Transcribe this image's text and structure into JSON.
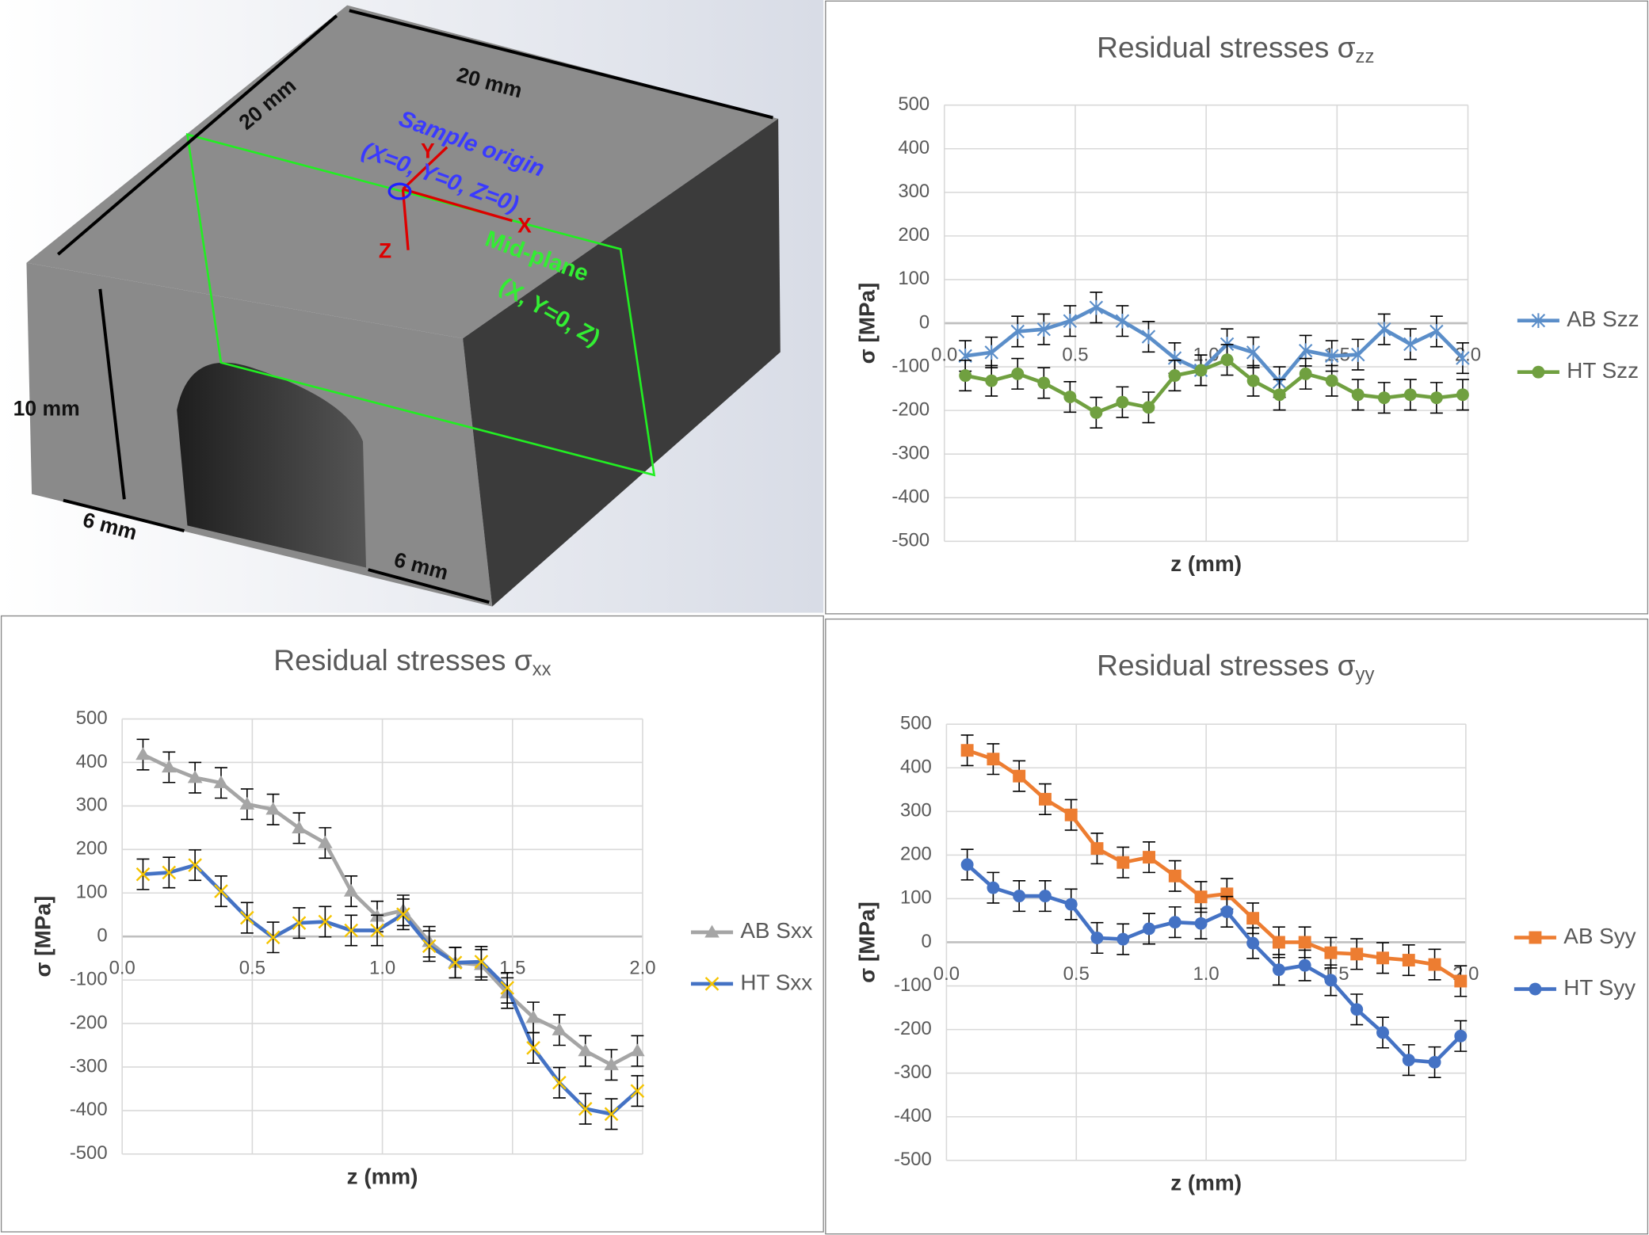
{
  "diagram": {
    "labels": {
      "top_width": "20 mm",
      "left_depth": "20 mm",
      "height": "10 mm",
      "leg_left": "6 mm",
      "leg_right": "6 mm",
      "origin": "Sample origin",
      "origin_coords": "(X=0, Y=0, Z=0)",
      "axis_y": "Y",
      "axis_x": "X",
      "axis_z": "Z",
      "plane": "Mid-plane",
      "plane_coords": "(X, Y=0, Z)"
    }
  },
  "chart_data": [
    {
      "type": "line",
      "title": "Residual stresses σ",
      "title_subscript": "zz",
      "x_label": "z (mm)",
      "y_label": "σ [MPa]",
      "legend": "right",
      "grid": true,
      "x": [
        0.08,
        0.18,
        0.28,
        0.38,
        0.48,
        0.58,
        0.68,
        0.78,
        0.88,
        0.98,
        1.08,
        1.18,
        1.28,
        1.38,
        1.48,
        1.58,
        1.68,
        1.78,
        1.88,
        1.98
      ],
      "xlim": [
        0,
        2
      ],
      "xticks": [
        {
          "value": 0,
          "label": "0.0"
        },
        {
          "value": 0.5,
          "label": "0.5"
        },
        {
          "value": 1,
          "label": "1.0"
        },
        {
          "value": 1.5,
          "label": "1.5"
        },
        {
          "value": 2,
          "label": "2.0"
        }
      ],
      "ylim": [
        -500,
        500
      ],
      "yticks": [
        -500,
        -400,
        -300,
        -200,
        -100,
        0,
        100,
        200,
        300,
        400,
        500
      ],
      "series": [
        {
          "name": "AB Szz",
          "color": "#5b8ec9",
          "marker": "asterisk",
          "error": 35,
          "values": [
            -75,
            -67,
            -19,
            -14,
            5,
            36,
            5,
            -31,
            -80,
            -108,
            -48,
            -67,
            -135,
            -63,
            -75,
            -72,
            -14,
            -48,
            -19,
            -80
          ]
        },
        {
          "name": "HT Szz",
          "color": "#70a040",
          "marker": "circle",
          "error": 35,
          "values": [
            -120,
            -132,
            -116,
            -137,
            -169,
            -205,
            -181,
            -193,
            -120,
            -108,
            -84,
            -132,
            -164,
            -116,
            -132,
            -164,
            -171,
            -164,
            -171,
            -164
          ]
        }
      ]
    },
    {
      "type": "line",
      "title": "Residual stresses σ",
      "title_subscript": "xx",
      "x_label": "z (mm)",
      "y_label": "σ [MPa]",
      "legend": "right",
      "grid": true,
      "x": [
        0.08,
        0.18,
        0.28,
        0.38,
        0.48,
        0.58,
        0.68,
        0.78,
        0.88,
        0.98,
        1.08,
        1.18,
        1.28,
        1.38,
        1.48,
        1.58,
        1.68,
        1.78,
        1.88,
        1.98
      ],
      "xlim": [
        0,
        2
      ],
      "xticks": [
        {
          "value": 0,
          "label": "0.0"
        },
        {
          "value": 0.5,
          "label": "0.5"
        },
        {
          "value": 1,
          "label": "1.0"
        },
        {
          "value": 1.5,
          "label": "1.5"
        },
        {
          "value": 2,
          "label": "2.0"
        }
      ],
      "ylim": [
        -500,
        500
      ],
      "yticks": [
        -500,
        -400,
        -300,
        -200,
        -100,
        0,
        100,
        200,
        300,
        400,
        500
      ],
      "series": [
        {
          "name": "AB Sxx",
          "color": "#a5a5a5",
          "marker": "triangle",
          "error": 35,
          "values": [
            418,
            389,
            365,
            353,
            304,
            292,
            249,
            215,
            104,
            46,
            60,
            -12,
            -60,
            -65,
            -130,
            -186,
            -215,
            -263,
            -295,
            -263
          ]
        },
        {
          "name": "HT Sxx",
          "color": "#4472c4",
          "marker": "cross",
          "marker_color": "#f5c400",
          "error": 35,
          "values": [
            143,
            147,
            164,
            104,
            43,
            -2,
            31,
            34,
            14,
            14,
            51,
            -22,
            -60,
            -58,
            -118,
            -256,
            -336,
            -396,
            -408,
            -355
          ]
        }
      ]
    },
    {
      "type": "line",
      "title": "Residual stresses σ",
      "title_subscript": "yy",
      "x_label": "z (mm)",
      "y_label": "σ [MPa]",
      "legend": "right",
      "grid": true,
      "x": [
        0.08,
        0.18,
        0.28,
        0.38,
        0.48,
        0.58,
        0.68,
        0.78,
        0.88,
        0.98,
        1.08,
        1.18,
        1.28,
        1.38,
        1.48,
        1.58,
        1.68,
        1.78,
        1.88,
        1.98
      ],
      "xlim": [
        0,
        2
      ],
      "xticks": [
        {
          "value": 0,
          "label": "0.0"
        },
        {
          "value": 0.5,
          "label": "0.5"
        },
        {
          "value": 1,
          "label": "1.0"
        },
        {
          "value": 1.5,
          "label": "1.5"
        },
        {
          "value": 2,
          "label": "2.0"
        }
      ],
      "ylim": [
        -500,
        500
      ],
      "yticks": [
        -500,
        -400,
        -300,
        -200,
        -100,
        0,
        100,
        200,
        300,
        400,
        500
      ],
      "series": [
        {
          "name": "AB Syy",
          "color": "#ed7d31",
          "marker": "square",
          "error": 35,
          "values": [
            440,
            420,
            381,
            328,
            292,
            215,
            183,
            195,
            152,
            104,
            111,
            55,
            0,
            0,
            -24,
            -27,
            -36,
            -41,
            -51,
            -89
          ]
        },
        {
          "name": "HT Syy",
          "color": "#4472c4",
          "marker": "circle",
          "error": 35,
          "values": [
            178,
            125,
            106,
            106,
            87,
            10,
            7,
            31,
            46,
            43,
            70,
            -2,
            -63,
            -53,
            -87,
            -154,
            -207,
            -270,
            -275,
            -215
          ]
        }
      ]
    }
  ]
}
